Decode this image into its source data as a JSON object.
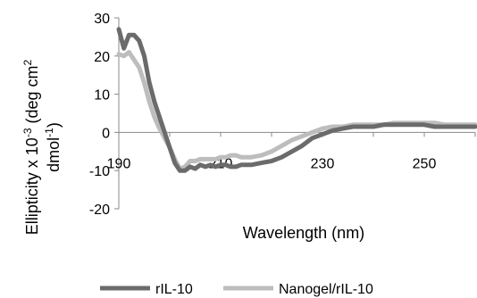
{
  "chart_data": {
    "type": "line",
    "xlabel": "Wavelength (nm)",
    "ylabel_main": "Ellipticity x 10",
    "ylabel_exp": "-3",
    "ylabel_rest": " (deg cm",
    "ylabel_exp2": "2",
    "ylabel_line2": "dmol",
    "ylabel_exp3": "-1",
    "ylabel_close": ")",
    "xlim": [
      190,
      260
    ],
    "ylim": [
      -20,
      30
    ],
    "xticks": [
      190,
      210,
      230,
      250
    ],
    "xtick_labels": [
      "190",
      "210",
      "230",
      "250"
    ],
    "yticks": [
      -20,
      -10,
      0,
      10,
      20,
      30
    ],
    "ytick_labels": [
      "-20",
      "-10",
      "0",
      "10",
      "20",
      "30"
    ],
    "grid": false,
    "legend_position": "bottom",
    "series": [
      {
        "name": "rIL-10",
        "color": "#6b6b6b",
        "x": [
          190,
          191,
          192,
          193,
          194,
          195,
          196,
          197,
          198,
          199,
          200,
          201,
          202,
          203,
          204,
          205,
          206,
          207,
          208,
          209,
          210,
          211,
          212,
          213,
          214,
          215,
          216,
          218,
          220,
          222,
          224,
          226,
          228,
          230,
          232,
          234,
          236,
          238,
          240,
          242,
          244,
          246,
          248,
          250,
          252,
          254,
          256,
          258,
          260
        ],
        "y": [
          27,
          22,
          25.5,
          25.5,
          24,
          20,
          13,
          8,
          4,
          0,
          -4,
          -8,
          -10,
          -10,
          -9,
          -9.5,
          -8.5,
          -9,
          -8.5,
          -9,
          -8.5,
          -8.5,
          -9,
          -9,
          -8.5,
          -8.5,
          -8.5,
          -8,
          -7.5,
          -6.5,
          -5,
          -3.5,
          -1.5,
          -0.5,
          0.5,
          1,
          1.5,
          1.5,
          1.5,
          2,
          2,
          2,
          2,
          2,
          1.5,
          1.5,
          1.5,
          1.5,
          1.5
        ]
      },
      {
        "name": "Nanogel/rIL-10",
        "color": "#bdbdbd",
        "x": [
          190,
          191,
          192,
          193,
          194,
          195,
          196,
          197,
          198,
          199,
          200,
          201,
          202,
          203,
          204,
          205,
          206,
          207,
          208,
          209,
          210,
          211,
          212,
          213,
          214,
          215,
          216,
          218,
          220,
          222,
          224,
          226,
          228,
          230,
          232,
          234,
          236,
          238,
          240,
          242,
          244,
          246,
          248,
          250,
          252,
          254,
          256,
          258,
          260
        ],
        "y": [
          20.5,
          20,
          21,
          19,
          17,
          13,
          8,
          4,
          1,
          -1.5,
          -4,
          -7,
          -9.5,
          -9,
          -7.5,
          -7.5,
          -7,
          -7,
          -7,
          -7,
          -6.5,
          -6.5,
          -6,
          -6,
          -6.5,
          -6.5,
          -6.5,
          -6,
          -5,
          -3.5,
          -2,
          -1,
          0,
          1,
          1.5,
          1.5,
          2,
          2,
          2,
          2,
          2.5,
          2.5,
          2.5,
          2.5,
          2.5,
          2,
          2,
          2,
          2
        ]
      }
    ]
  }
}
